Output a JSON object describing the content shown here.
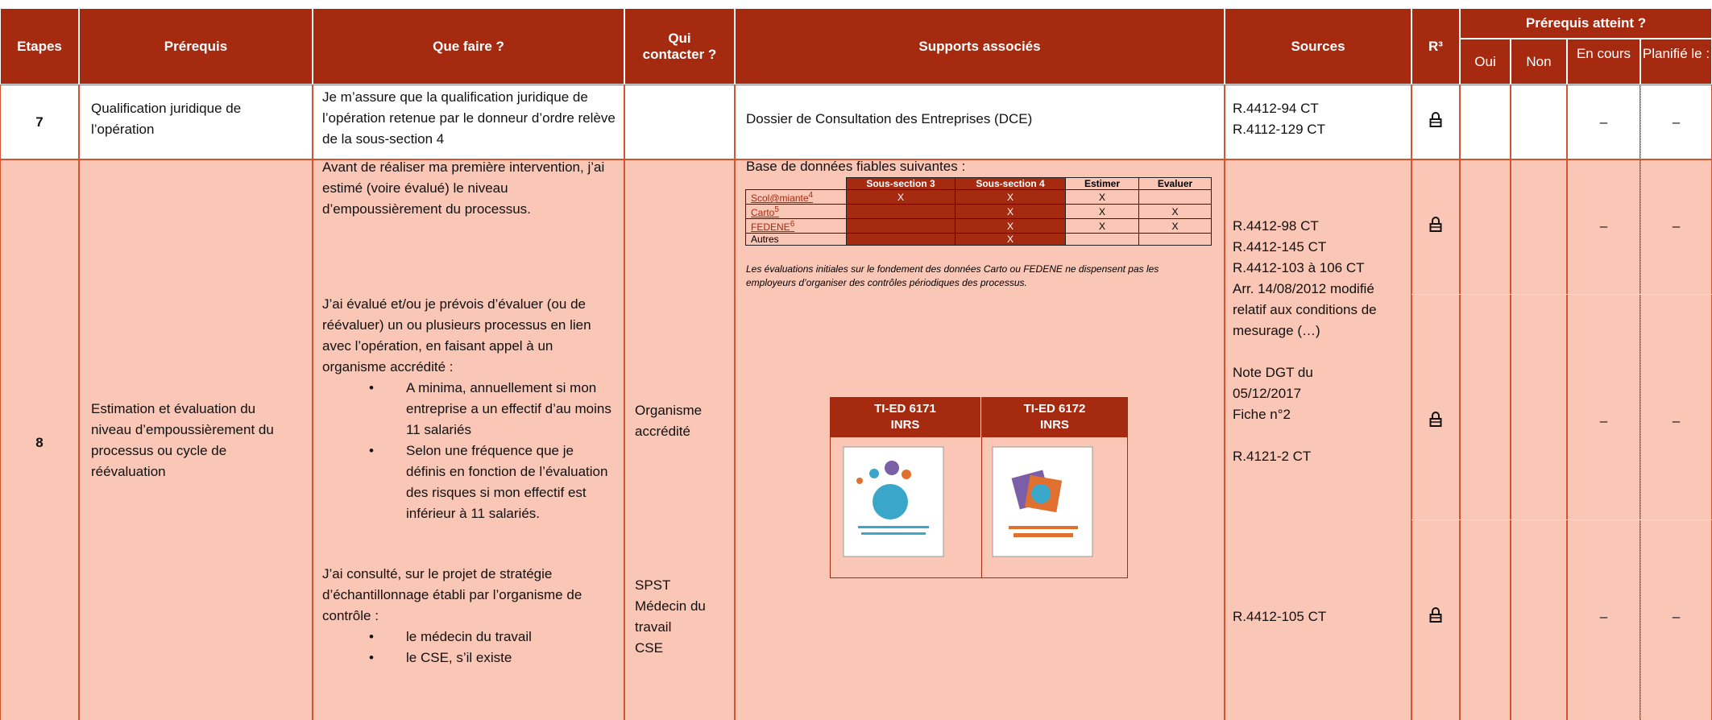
{
  "header": {
    "etapes": "Etapes",
    "prerequis": "Prérequis",
    "que_faire": "Que faire ?",
    "qui_contacter": "Qui contacter ?",
    "supports": "Supports associés",
    "sources": "Sources",
    "r3": "R³",
    "atteint": "Prérequis atteint ?",
    "oui": "Oui",
    "non": "Non",
    "en_cours": "En cours",
    "planifie": "Planifié le :"
  },
  "row7": {
    "etape": "7",
    "prerequis": "Qualification juridique de l’opération",
    "que_faire": "Je m’assure que la qualification juridique de l’opération retenue par le donneur d’ordre relève de la sous-section 4",
    "supports": "Dossier de Consultation des Entreprises (DCE)",
    "sources": [
      "R.4412-94 CT",
      "R.4112-129 CT"
    ],
    "en_cours": "–",
    "planifie": "–"
  },
  "row8": {
    "etape": "8",
    "prerequis": "Estimation et évaluation du niveau d’empoussièrement du processus ou cycle de réévaluation",
    "que_faire": [
      {
        "text": "Avant de réaliser ma première intervention, j’ai estimé (voire évalué) le niveau d’empoussièrement du processus."
      },
      {
        "text": "J’ai évalué et/ou je prévois d’évaluer (ou de réévaluer) un ou plusieurs processus en lien avec l’opération, en faisant appel à un organisme accrédité :",
        "bullets": [
          "A minima, annuellement si mon entreprise a un effectif d’au moins 11 salariés",
          "Selon une fréquence que je définis en fonction de l’évaluation des risques si mon effectif est inférieur à 11 salariés."
        ]
      },
      {
        "text": "J’ai consulté, sur le projet de stratégie d’échantillonnage établi par l’organisme de contrôle :",
        "bullets": [
          "le médecin du travail",
          "le CSE, s’il existe"
        ]
      }
    ],
    "qui_contacter": [
      "Organisme accrédité",
      "SPST\nMédecin du travail\nCSE"
    ],
    "supports": {
      "intro": "Base de données fiables suivantes :",
      "table": {
        "header": [
          "Sous-section 3",
          "Sous-section 4",
          "Estimer",
          "Evaluer"
        ],
        "rows": [
          {
            "name": "Scol@miante",
            "note": "4",
            "cells": [
              "X",
              "X",
              "X",
              null
            ]
          },
          {
            "name": "Carto",
            "note": "5",
            "cells": [
              null,
              "X",
              "X",
              "X"
            ]
          },
          {
            "name": "FEDENE",
            "note": "6",
            "cells": [
              null,
              "X",
              "X",
              "X"
            ]
          },
          {
            "name": "Autres",
            "cells": [
              null,
              "X",
              null,
              null
            ]
          }
        ]
      },
      "note": "Les évaluations initiales sur le fondement des données Carto ou FEDENE ne dispensent pas les employeurs d’organiser des contrôles périodiques des processus.",
      "docs": [
        {
          "title": "TI-ED 6171",
          "publisher": "INRS"
        },
        {
          "title": "TI-ED 6172",
          "publisher": "INRS"
        }
      ]
    },
    "sources": [
      [
        "R.4412-98 CT",
        "R.4412-145 CT",
        "R.4412-103 à 106 CT",
        "Arr. 14/08/2012 modifié relatif aux conditions de mesurage (…)"
      ],
      [
        "Note DGT du 05/12/2017",
        "Fiche n°2"
      ],
      [
        "R.4121-2 CT"
      ],
      [
        "R.4412-105 CT"
      ]
    ],
    "status": [
      {
        "en_cours": "–",
        "planifie": "–"
      },
      {
        "en_cours": "–",
        "planifie": "–"
      },
      {
        "en_cours": "–",
        "planifie": "–"
      }
    ]
  }
}
